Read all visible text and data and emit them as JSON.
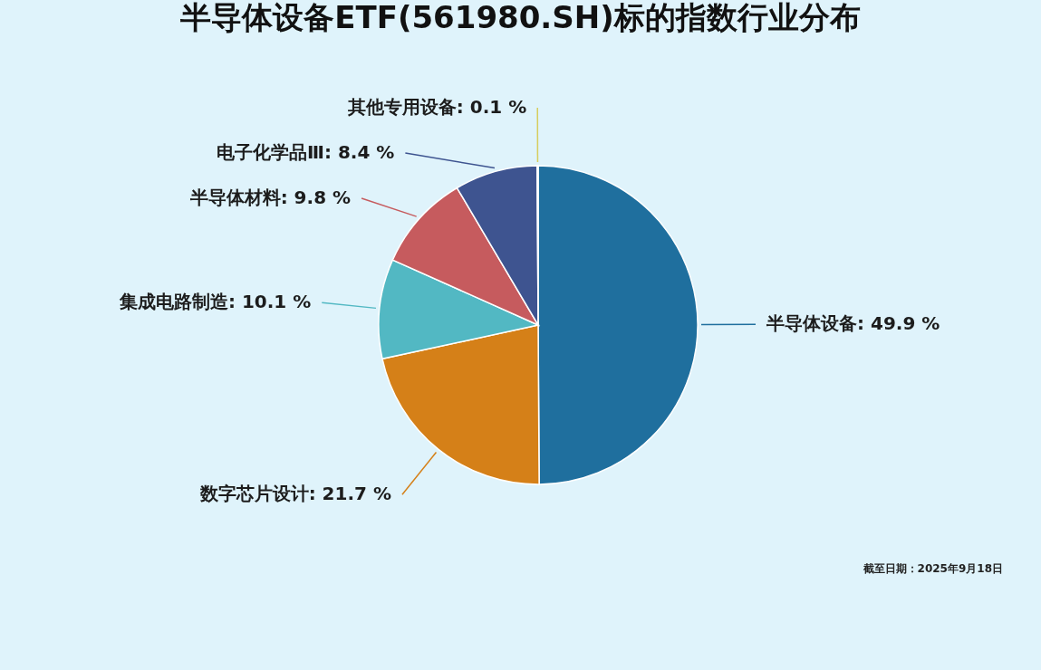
{
  "chart_data": {
    "type": "pie",
    "title": "半导体设备ETF(561980.SH)标的指数行业分布",
    "categories": [
      "半导体设备",
      "数字芯片设计",
      "集成电路制造",
      "半导体材料",
      "电子化学品Ⅲ",
      "其他专用设备"
    ],
    "values": [
      49.9,
      21.7,
      10.1,
      9.8,
      8.4,
      0.1
    ],
    "value_labels": [
      "49.9 %",
      "21.7 %",
      "10.1 %",
      "9.8 %",
      "8.4 %",
      "0.1 %"
    ],
    "colors": [
      "#1f6f9e",
      "#d58018",
      "#52b8c3",
      "#c65b5e",
      "#3e5490",
      "#d6cd5e"
    ],
    "legend": false,
    "annotations": [
      "截至日期：2025年9月18日"
    ]
  }
}
